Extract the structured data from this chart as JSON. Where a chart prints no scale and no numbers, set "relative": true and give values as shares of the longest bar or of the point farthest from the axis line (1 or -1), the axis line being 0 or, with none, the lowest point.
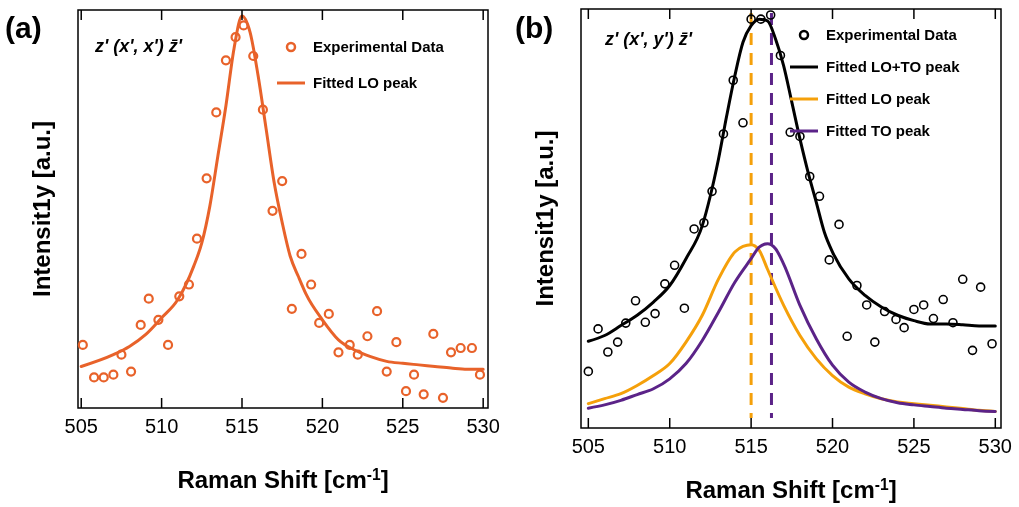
{
  "chart_data": [
    {
      "type": "line",
      "title": "(a)",
      "xlabel": "Raman Shift [cm$^{-1}$]",
      "ylabel": "Intensit1y [a.u.]",
      "relative": true,
      "xlim": [
        504.8,
        530.3
      ],
      "xticks": [
        505,
        510,
        515,
        520,
        525,
        530
      ],
      "legend": "top right",
      "annotations": [
        "z' (x', x') z̄'"
      ],
      "series": [
        {
          "name": "Experimental Data",
          "type": "scatter",
          "marker": "circle",
          "color": "#e8622a",
          "x": [
            505.1,
            505.8,
            506.4,
            507.0,
            507.5,
            508.1,
            508.7,
            509.2,
            509.8,
            510.4,
            511.1,
            511.7,
            512.2,
            512.8,
            513.4,
            514.0,
            514.6,
            515.1,
            515.7,
            516.3,
            516.9,
            517.5,
            518.1,
            518.7,
            519.3,
            519.8,
            520.4,
            521.0,
            521.7,
            522.2,
            522.8,
            523.4,
            524.0,
            524.6,
            525.2,
            525.7,
            526.3,
            526.9,
            527.5,
            528.0,
            528.6,
            529.3,
            529.8
          ],
          "values": [
            0.161,
            0.078,
            0.078,
            0.085,
            0.136,
            0.093,
            0.212,
            0.279,
            0.225,
            0.161,
            0.285,
            0.315,
            0.432,
            0.586,
            0.754,
            0.887,
            0.946,
            0.976,
            0.898,
            0.761,
            0.503,
            0.579,
            0.253,
            0.393,
            0.315,
            0.217,
            0.24,
            0.142,
            0.161,
            0.136,
            0.183,
            0.247,
            0.093,
            0.168,
            0.043,
            0.085,
            0.035,
            0.189,
            0.026,
            0.142,
            0.153,
            0.153,
            0.085
          ]
        },
        {
          "name": "Fitted LO peak",
          "color": "#e8622a",
          "x": [
            505,
            507,
            508,
            509,
            510,
            511,
            512,
            512.5,
            513,
            513.5,
            514,
            514.5,
            515,
            515.5,
            516,
            516.5,
            517,
            517.5,
            518,
            518.5,
            519,
            520,
            521,
            522,
            523,
            524,
            525,
            526,
            527,
            528,
            529,
            530
          ],
          "values": [
            0.106,
            0.136,
            0.157,
            0.187,
            0.23,
            0.276,
            0.362,
            0.421,
            0.515,
            0.643,
            0.771,
            0.916,
            1.0,
            0.959,
            0.848,
            0.712,
            0.575,
            0.473,
            0.387,
            0.336,
            0.289,
            0.225,
            0.174,
            0.148,
            0.131,
            0.119,
            0.114,
            0.11,
            0.106,
            0.102,
            0.099,
            0.099
          ]
        }
      ]
    },
    {
      "type": "line",
      "title": "(b)",
      "xlabel": "Raman Shift [cm$^{-1}$]",
      "ylabel": "Intensit1y [a.u.]",
      "relative": true,
      "xlim": [
        504.55,
        530.35
      ],
      "xticks": [
        505,
        510,
        515,
        520,
        525,
        530
      ],
      "legend": "top right",
      "annotations": [
        "z' (x', y') z̄'"
      ],
      "ref_lines": [
        {
          "axis": "x",
          "value": 515.0,
          "label": null,
          "color": "#f5a00a",
          "line_style": "dashed"
        },
        {
          "axis": "x",
          "value": 516.25,
          "label": null,
          "color": "#5b2388",
          "line_style": "dashed"
        }
      ],
      "series": [
        {
          "name": "Experimental Data",
          "type": "scatter",
          "marker": "circle",
          "color": "#000000",
          "x": [
            505.0,
            505.6,
            506.2,
            506.8,
            507.3,
            507.9,
            508.5,
            509.1,
            509.7,
            510.3,
            510.9,
            511.5,
            512.1,
            512.6,
            513.3,
            513.9,
            514.5,
            515.0,
            515.6,
            516.2,
            516.8,
            517.4,
            518.0,
            518.6,
            519.2,
            519.8,
            520.4,
            520.9,
            521.5,
            522.1,
            522.6,
            523.2,
            523.9,
            524.4,
            525.0,
            525.6,
            526.2,
            526.8,
            527.4,
            528.0,
            528.6,
            529.1,
            529.8
          ],
          "values": [
            0.137,
            0.24,
            0.184,
            0.208,
            0.254,
            0.308,
            0.256,
            0.277,
            0.349,
            0.394,
            0.29,
            0.482,
            0.497,
            0.573,
            0.712,
            0.842,
            0.739,
            0.99,
            0.99,
            1.0,
            0.902,
            0.716,
            0.706,
            0.609,
            0.561,
            0.407,
            0.493,
            0.222,
            0.345,
            0.298,
            0.208,
            0.282,
            0.263,
            0.243,
            0.287,
            0.298,
            0.265,
            0.311,
            0.255,
            0.36,
            0.188,
            0.341,
            0.204
          ]
        },
        {
          "name": "Fitted LO+TO peak",
          "color": "#000000",
          "x": [
            505,
            506,
            507,
            508,
            509,
            510,
            511,
            512,
            512.5,
            513,
            513.5,
            514,
            514.5,
            515,
            515.5,
            516,
            516.5,
            517,
            517.5,
            518,
            518.5,
            519,
            519.5,
            520,
            521,
            522,
            523,
            524,
            525,
            526,
            527,
            528,
            529,
            530
          ],
          "values": [
            0.21,
            0.224,
            0.248,
            0.273,
            0.305,
            0.345,
            0.41,
            0.49,
            0.563,
            0.652,
            0.756,
            0.853,
            0.934,
            0.974,
            0.99,
            0.986,
            0.942,
            0.877,
            0.789,
            0.7,
            0.619,
            0.547,
            0.474,
            0.426,
            0.361,
            0.321,
            0.293,
            0.273,
            0.26,
            0.252,
            0.252,
            0.25,
            0.247,
            0.247
          ]
        },
        {
          "name": "Fitted LO peak",
          "color": "#f5a00a",
          "x": [
            505,
            506,
            507,
            508,
            509,
            510,
            511,
            512,
            513,
            514,
            514.5,
            515,
            515.5,
            516,
            517,
            518,
            519,
            520,
            521,
            522,
            523,
            524,
            525,
            526,
            527,
            528,
            529,
            530
          ],
          "values": [
            0.059,
            0.071,
            0.083,
            0.103,
            0.127,
            0.156,
            0.208,
            0.273,
            0.361,
            0.426,
            0.44,
            0.444,
            0.43,
            0.385,
            0.297,
            0.224,
            0.168,
            0.127,
            0.099,
            0.083,
            0.071,
            0.063,
            0.059,
            0.055,
            0.051,
            0.047,
            0.043,
            0.04
          ]
        },
        {
          "name": "Fitted TO peak",
          "color": "#5b2388",
          "x": [
            505,
            506,
            507,
            508,
            509,
            510,
            511,
            512,
            513,
            514,
            515,
            515.5,
            516,
            516.5,
            517,
            518,
            519,
            520,
            521,
            522,
            523,
            524,
            525,
            526,
            527,
            528,
            529,
            530
          ],
          "values": [
            0.048,
            0.056,
            0.067,
            0.081,
            0.095,
            0.119,
            0.156,
            0.212,
            0.281,
            0.353,
            0.41,
            0.438,
            0.446,
            0.434,
            0.397,
            0.297,
            0.216,
            0.152,
            0.111,
            0.087,
            0.071,
            0.061,
            0.056,
            0.052,
            0.048,
            0.045,
            0.042,
            0.04
          ]
        }
      ]
    }
  ]
}
